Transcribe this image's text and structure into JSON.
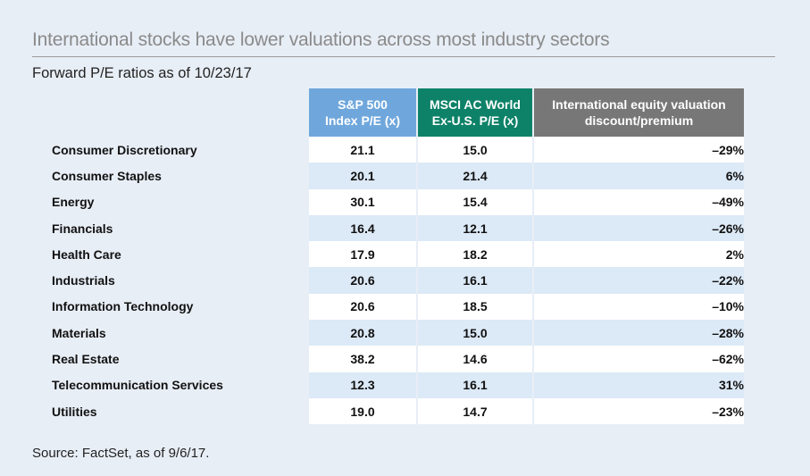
{
  "title": "International stocks have lower valuations across most industry sectors",
  "subtitle": "Forward P/E ratios as of 10/23/17",
  "source": "Source: FactSet, as of 9/6/17.",
  "colors": {
    "sp_header": "#6fa7dc",
    "msci_header": "#0e8268",
    "discount_header": "#777777",
    "background": "#e8eef6",
    "stripe": "#dce9f6"
  },
  "chart_data": {
    "type": "table",
    "title": "International stocks have lower valuations across most industry sectors",
    "subtitle": "Forward P/E ratios as of 10/23/17",
    "columns": [
      {
        "line1": "S&P 500",
        "line2": "Index P/E (x)"
      },
      {
        "line1": "MSCI AC World",
        "line2": "Ex-U.S. P/E (x)"
      },
      {
        "line1": "International equity valuation",
        "line2": "discount/premium"
      }
    ],
    "rows": [
      {
        "sector": "Consumer Discretionary",
        "sp500": "21.1",
        "msci": "15.0",
        "discount": "–29%"
      },
      {
        "sector": "Consumer Staples",
        "sp500": "20.1",
        "msci": "21.4",
        "discount": "6%"
      },
      {
        "sector": "Energy",
        "sp500": "30.1",
        "msci": "15.4",
        "discount": "–49%"
      },
      {
        "sector": "Financials",
        "sp500": "16.4",
        "msci": "12.1",
        "discount": "–26%"
      },
      {
        "sector": "Health Care",
        "sp500": "17.9",
        "msci": "18.2",
        "discount": "2%"
      },
      {
        "sector": "Industrials",
        "sp500": "20.6",
        "msci": "16.1",
        "discount": "–22%"
      },
      {
        "sector": "Information Technology",
        "sp500": "20.6",
        "msci": "18.5",
        "discount": "–10%"
      },
      {
        "sector": "Materials",
        "sp500": "20.8",
        "msci": "15.0",
        "discount": "–28%"
      },
      {
        "sector": "Real Estate",
        "sp500": "38.2",
        "msci": "14.6",
        "discount": "–62%"
      },
      {
        "sector": "Telecommunication Services",
        "sp500": "12.3",
        "msci": "16.1",
        "discount": "31%"
      },
      {
        "sector": "Utilities",
        "sp500": "19.0",
        "msci": "14.7",
        "discount": "–23%"
      }
    ]
  }
}
